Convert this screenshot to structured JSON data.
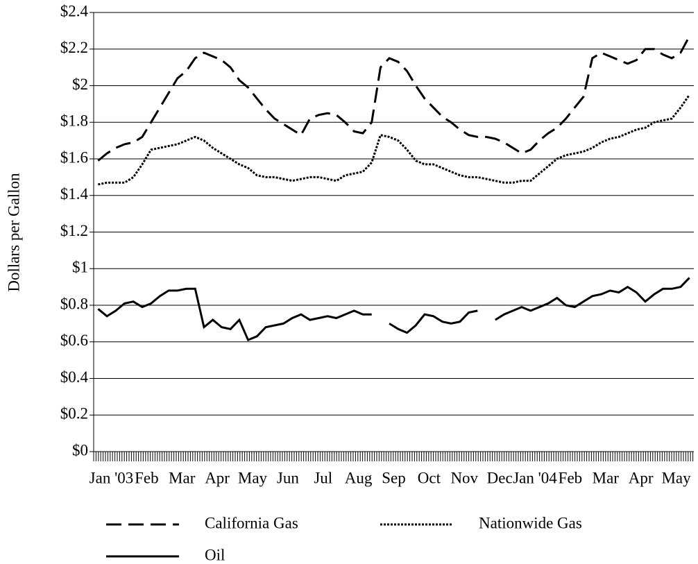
{
  "chart_data": {
    "type": "line",
    "y_label": "Dollars per Gallon",
    "categories": [
      "Jan '03",
      null,
      null,
      null,
      "Feb",
      null,
      null,
      null,
      "Mar",
      null,
      null,
      null,
      "Apr",
      null,
      null,
      null,
      "May",
      null,
      null,
      null,
      "Jun",
      null,
      null,
      null,
      "Jul",
      null,
      null,
      null,
      "Aug",
      null,
      null,
      null,
      "Sep",
      null,
      null,
      null,
      "Oct",
      null,
      null,
      null,
      "Nov",
      null,
      null,
      null,
      "Dec",
      null,
      null,
      null,
      "Jan '04",
      null,
      null,
      null,
      "Feb",
      null,
      null,
      null,
      "Mar",
      null,
      null,
      null,
      "Apr",
      null,
      null,
      null,
      "May",
      null,
      null,
      null
    ],
    "series": [
      {
        "name": "California Gas",
        "color": "#000000",
        "dash": "dashed",
        "values": [
          1.59,
          1.63,
          1.66,
          1.68,
          1.69,
          1.72,
          1.8,
          1.88,
          1.96,
          2.04,
          2.08,
          2.15,
          2.18,
          2.16,
          2.14,
          2.1,
          2.03,
          1.99,
          1.93,
          1.87,
          1.82,
          1.79,
          1.76,
          1.73,
          1.82,
          1.84,
          1.85,
          1.84,
          1.8,
          1.75,
          1.74,
          1.8,
          2.1,
          2.15,
          2.13,
          2.08,
          2.0,
          1.93,
          1.88,
          1.83,
          1.8,
          1.76,
          1.73,
          1.72,
          1.72,
          1.71,
          1.69,
          1.66,
          1.63,
          1.65,
          1.7,
          1.74,
          1.77,
          1.82,
          1.88,
          1.94,
          2.15,
          2.18,
          2.16,
          2.14,
          2.12,
          2.14,
          2.2,
          2.2,
          2.17,
          2.15,
          2.18,
          2.27
        ]
      },
      {
        "name": "Nationwide Gas",
        "color": "#000000",
        "dash": "dotted",
        "values": [
          1.46,
          1.47,
          1.47,
          1.47,
          1.5,
          1.57,
          1.65,
          1.66,
          1.67,
          1.68,
          1.7,
          1.72,
          1.7,
          1.66,
          1.63,
          1.6,
          1.57,
          1.55,
          1.51,
          1.5,
          1.5,
          1.49,
          1.48,
          1.49,
          1.5,
          1.5,
          1.49,
          1.48,
          1.51,
          1.52,
          1.53,
          1.58,
          1.73,
          1.72,
          1.7,
          1.65,
          1.59,
          1.57,
          1.57,
          1.55,
          1.53,
          1.51,
          1.5,
          1.5,
          1.49,
          1.48,
          1.47,
          1.47,
          1.48,
          1.48,
          1.52,
          1.56,
          1.6,
          1.62,
          1.63,
          1.64,
          1.66,
          1.69,
          1.71,
          1.72,
          1.74,
          1.76,
          1.77,
          1.8,
          1.81,
          1.82,
          1.88,
          1.95
        ]
      },
      {
        "name": "Oil",
        "color": "#000000",
        "dash": "solid",
        "values": [
          0.78,
          0.74,
          0.77,
          0.81,
          0.82,
          0.79,
          0.81,
          0.85,
          0.88,
          0.88,
          0.89,
          0.89,
          0.68,
          0.72,
          0.68,
          0.67,
          0.72,
          0.61,
          0.63,
          0.68,
          0.69,
          0.7,
          0.73,
          0.75,
          0.72,
          0.73,
          0.74,
          0.73,
          0.75,
          0.77,
          0.75,
          0.75,
          null,
          0.7,
          0.67,
          0.65,
          0.69,
          0.75,
          0.74,
          0.71,
          0.7,
          0.71,
          0.76,
          0.77,
          null,
          0.72,
          0.75,
          0.77,
          0.79,
          0.77,
          0.79,
          0.81,
          0.84,
          0.8,
          0.79,
          0.82,
          0.85,
          0.86,
          0.88,
          0.87,
          0.9,
          0.87,
          0.82,
          0.86,
          0.89,
          0.89,
          0.9,
          0.95
        ]
      }
    ],
    "ylim": [
      0,
      2.4
    ],
    "yticks": [
      {
        "value": 0,
        "label": "$0"
      },
      {
        "value": 0.2,
        "label": "$0.2"
      },
      {
        "value": 0.4,
        "label": "$0.4"
      },
      {
        "value": 0.6,
        "label": "$0.6"
      },
      {
        "value": 0.8,
        "label": "$0.8"
      },
      {
        "value": 1,
        "label": "$1"
      },
      {
        "value": 1.2,
        "label": "$1.2"
      },
      {
        "value": 1.4,
        "label": "$1.4"
      },
      {
        "value": 1.6,
        "label": "$1.6"
      },
      {
        "value": 1.8,
        "label": "$1.8"
      },
      {
        "value": 2,
        "label": "$2"
      },
      {
        "value": 2.2,
        "label": "$2.2"
      },
      {
        "value": 2.4,
        "label": "$2.4"
      }
    ],
    "grid": true
  }
}
